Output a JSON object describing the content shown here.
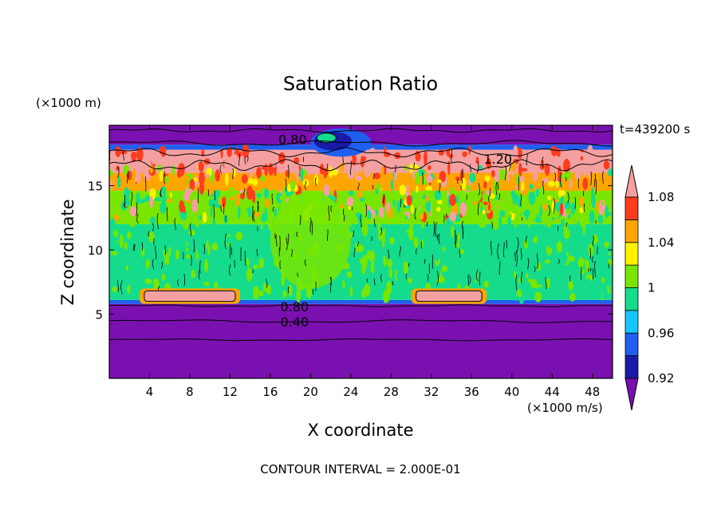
{
  "chart_data": {
    "type": "heatmap",
    "title": "Saturation Ratio",
    "xlabel": "X coordinate",
    "ylabel": "Z coordinate",
    "x_unit_label": "(×1000 m/s)",
    "y_unit_label": "(×1000 m)",
    "time_label": "t=439200 s",
    "footer": "CONTOUR INTERVAL = 2.000E-01",
    "xlim": [
      0,
      50
    ],
    "ylim": [
      0,
      19.7
    ],
    "x_ticks": [
      4,
      8,
      12,
      16,
      20,
      24,
      28,
      32,
      36,
      40,
      44,
      48
    ],
    "y_ticks": [
      5,
      10,
      15
    ],
    "contour_labels": [
      {
        "text": "0.80",
        "x": 16.8,
        "y": 18.6
      },
      {
        "text": "1.20",
        "x": 37.2,
        "y": 17.1
      },
      {
        "text": "0.80",
        "x": 17.0,
        "y": 5.6
      },
      {
        "text": "0.40",
        "x": 17.0,
        "y": 4.4
      }
    ],
    "colorbar": {
      "levels": [
        0.92,
        0.94,
        0.96,
        0.98,
        1.0,
        1.02,
        1.04,
        1.06,
        1.08,
        1.1
      ],
      "tick_labels": [
        "0.92",
        "0.96",
        "1",
        "1.04",
        "1.08"
      ],
      "tick_values": [
        0.92,
        0.96,
        1.0,
        1.04,
        1.08
      ],
      "colors": [
        "#7a10b0",
        "#1a1aa8",
        "#1f5ff0",
        "#14c8ff",
        "#14dc8c",
        "#78e600",
        "#fff200",
        "#ffa500",
        "#ff3c1e",
        "#f5a0a0"
      ],
      "extend": "both"
    },
    "regions": [
      {
        "zmin": 0.0,
        "zmax": 5.8,
        "value": 0.5
      },
      {
        "zmin": 5.8,
        "zmax": 6.1,
        "value": 0.95
      },
      {
        "zmin": 6.1,
        "zmax": 12.0,
        "value": 0.99
      },
      {
        "zmin": 12.0,
        "zmax": 14.6,
        "value": 1.01
      },
      {
        "zmin": 14.6,
        "zmax": 16.0,
        "value": 1.05
      },
      {
        "zmin": 16.0,
        "zmax": 17.8,
        "value": 1.15
      },
      {
        "zmin": 17.8,
        "zmax": 18.2,
        "value": 0.95
      },
      {
        "zmin": 18.2,
        "zmax": 19.7,
        "value": 0.7
      }
    ],
    "features": [
      {
        "kind": "supersaturated_lens",
        "xmin": 3.0,
        "xmax": 13.0,
        "zmin": 5.8,
        "zmax": 7.0
      },
      {
        "kind": "supersaturated_lens",
        "xmin": 30.0,
        "xmax": 37.5,
        "zmin": 5.8,
        "zmax": 7.0
      },
      {
        "kind": "moist_column",
        "xmin": 16.0,
        "xmax": 24.0,
        "zmin": 7.0,
        "zmax": 14.5
      },
      {
        "kind": "dry_intrusion",
        "xmin": 20.0,
        "xmax": 26.0,
        "zmin": 17.5,
        "zmax": 19.7
      }
    ]
  }
}
